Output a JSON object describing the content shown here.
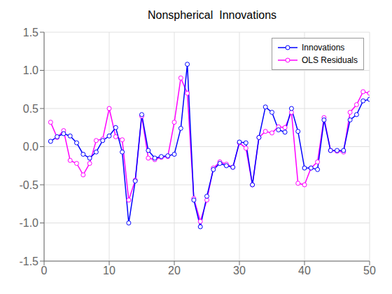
{
  "chart_data": {
    "type": "line",
    "title": "Nonspherical  Innovations",
    "x": [
      1,
      2,
      3,
      4,
      5,
      6,
      7,
      8,
      9,
      10,
      11,
      12,
      13,
      14,
      15,
      16,
      17,
      18,
      19,
      20,
      21,
      22,
      23,
      24,
      25,
      26,
      27,
      28,
      29,
      30,
      31,
      32,
      33,
      34,
      35,
      36,
      37,
      38,
      39,
      40,
      41,
      42,
      43,
      44,
      45,
      46,
      47,
      48,
      49,
      50
    ],
    "series": [
      {
        "name": "Innovations",
        "color": "#0000FF",
        "marker": "circle",
        "line_style": "solid",
        "values": [
          0.07,
          0.13,
          0.17,
          0.14,
          0.05,
          -0.1,
          -0.15,
          -0.07,
          0.08,
          0.14,
          0.25,
          -0.07,
          -1.0,
          -0.45,
          0.42,
          -0.05,
          -0.15,
          -0.13,
          -0.12,
          -0.1,
          0.24,
          1.08,
          -0.7,
          -1.05,
          -0.65,
          -0.3,
          -0.22,
          -0.25,
          -0.27,
          0.06,
          0.05,
          -0.5,
          0.12,
          0.52,
          0.45,
          0.22,
          0.19,
          0.5,
          0.2,
          -0.28,
          -0.28,
          -0.3,
          0.35,
          -0.05,
          -0.05,
          -0.05,
          0.35,
          0.42,
          0.6,
          0.62
        ]
      },
      {
        "name": "OLS Residuals",
        "color": "#FF00FF",
        "marker": "circle",
        "line_style": "solid",
        "values": [
          0.32,
          0.12,
          0.21,
          -0.18,
          -0.22,
          -0.37,
          -0.22,
          0.08,
          0.1,
          0.5,
          0.13,
          0.09,
          -0.7,
          -0.44,
          0.4,
          -0.15,
          -0.17,
          -0.14,
          -0.13,
          0.32,
          0.9,
          0.7,
          -0.68,
          -0.98,
          -0.7,
          -0.28,
          -0.2,
          -0.23,
          -0.27,
          0.05,
          -0.02,
          -0.5,
          0.12,
          0.2,
          0.18,
          0.26,
          0.25,
          0.45,
          -0.48,
          -0.5,
          -0.28,
          -0.2,
          0.38,
          -0.05,
          -0.06,
          -0.07,
          0.45,
          0.55,
          0.72,
          0.7
        ]
      }
    ],
    "xlim": [
      0,
      50
    ],
    "ylim": [
      -1.5,
      1.5
    ],
    "xticks": [
      0,
      10,
      20,
      30,
      40,
      50
    ],
    "yticks": [
      -1.5,
      {
        "value": -1.0,
        "label": "-1.0"
      },
      -0.5,
      {
        "value": 0.0,
        "label": "0.0"
      },
      0.5,
      {
        "value": 1.0,
        "label": "1.0"
      },
      1.5
    ],
    "grid": true,
    "legend": "upper right"
  }
}
